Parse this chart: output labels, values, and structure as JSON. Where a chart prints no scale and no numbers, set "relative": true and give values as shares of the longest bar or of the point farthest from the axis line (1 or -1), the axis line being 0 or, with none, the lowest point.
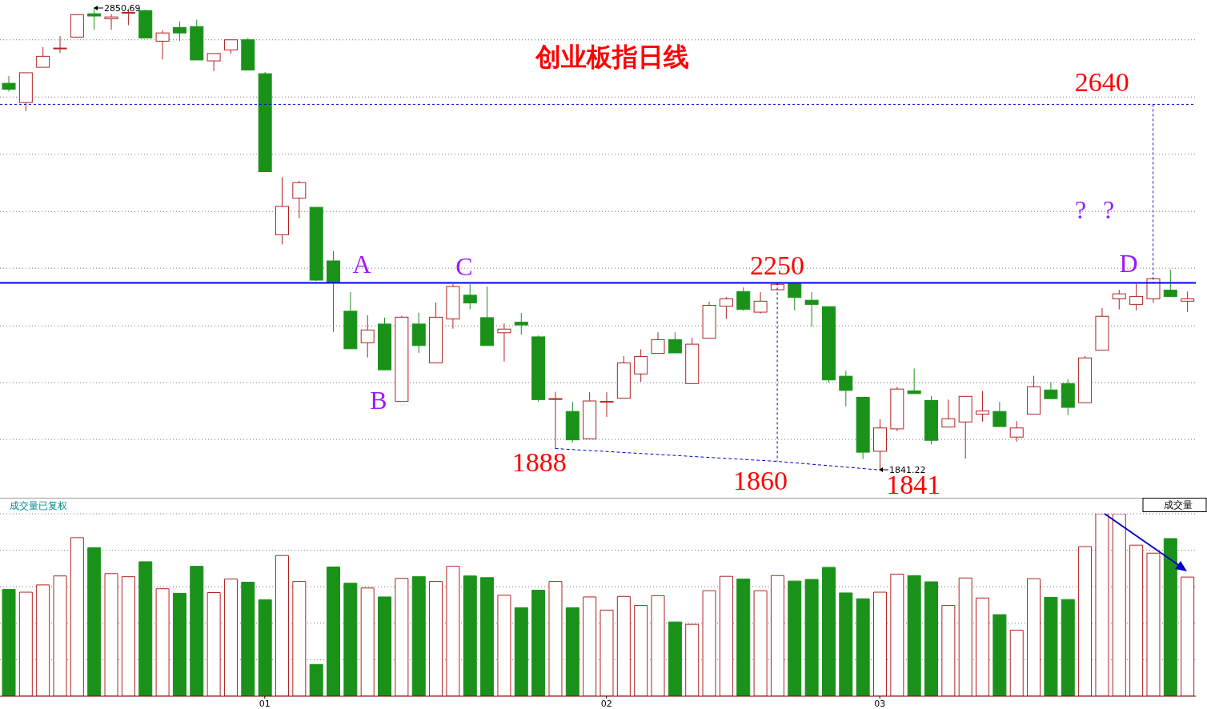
{
  "chart_data": [
    {
      "type": "candlestick",
      "title": "创业板指日线",
      "categories": [
        null,
        null,
        null,
        null,
        null,
        null,
        null,
        null,
        null,
        null,
        null,
        null,
        null,
        null,
        null,
        "01",
        null,
        null,
        null,
        null,
        null,
        null,
        null,
        null,
        null,
        null,
        null,
        null,
        null,
        null,
        null,
        null,
        null,
        null,
        null,
        "02",
        null,
        null,
        null,
        null,
        null,
        null,
        null,
        null,
        null,
        null,
        null,
        null,
        null,
        null,
        null,
        "03",
        null,
        null,
        null,
        null,
        null,
        null,
        null,
        null,
        null,
        null,
        null,
        null,
        null,
        null,
        null,
        null,
        null,
        null
      ],
      "ohlc": [
        [
          2686,
          2702,
          2668,
          2673
        ],
        [
          2644,
          2709,
          2625,
          2709
        ],
        [
          2721,
          2765,
          2721,
          2745
        ],
        [
          2762,
          2789,
          2752,
          2763
        ],
        [
          2787,
          2836,
          2787,
          2836
        ],
        [
          2838,
          2850.69,
          2803,
          2833
        ],
        [
          2827,
          2837,
          2803,
          2831
        ],
        [
          2840,
          2849,
          2813,
          2841
        ],
        [
          2845,
          2847,
          2785,
          2785
        ],
        [
          2778,
          2802,
          2738,
          2796
        ],
        [
          2808,
          2821,
          2778,
          2796
        ],
        [
          2810,
          2825,
          2737,
          2737
        ],
        [
          2735,
          2751,
          2713,
          2751
        ],
        [
          2759,
          2782,
          2751,
          2781
        ],
        [
          2781,
          2785,
          2715,
          2715
        ],
        [
          2707,
          2711,
          2493,
          2493
        ],
        [
          2355,
          2481,
          2334,
          2417
        ],
        [
          2435,
          2473,
          2391,
          2469
        ],
        [
          2415,
          2415,
          2254,
          2256
        ],
        [
          2298,
          2319,
          2143,
          2250
        ],
        [
          2188,
          2230,
          2106,
          2106
        ],
        [
          2119,
          2179,
          2087,
          2147
        ],
        [
          2160,
          2174,
          2060,
          2060
        ],
        [
          1991,
          2178,
          1991,
          2175
        ],
        [
          2160,
          2185,
          2097,
          2113
        ],
        [
          2075,
          2207,
          2075,
          2175
        ],
        [
          2171,
          2247,
          2150,
          2242
        ],
        [
          2223,
          2247,
          2192,
          2206
        ],
        [
          2174,
          2242,
          2113,
          2113
        ],
        [
          2141,
          2161,
          2078,
          2149
        ],
        [
          2164,
          2184,
          2137,
          2158
        ],
        [
          2132,
          2135,
          1990,
          1995
        ],
        [
          1996,
          2012,
          1888,
          1997
        ],
        [
          1969,
          1990,
          1901,
          1907
        ],
        [
          1909,
          2011,
          1909,
          1992
        ],
        [
          1990,
          2011,
          1957,
          1991
        ],
        [
          1998,
          2090,
          1998,
          2075
        ],
        [
          2051,
          2105,
          2034,
          2089
        ],
        [
          2096,
          2142,
          2096,
          2126
        ],
        [
          2126,
          2142,
          2097,
          2097
        ],
        [
          2030,
          2130,
          2030,
          2116
        ],
        [
          2129,
          2209,
          2129,
          2201
        ],
        [
          2199,
          2219,
          2171,
          2215
        ],
        [
          2231,
          2240,
          2189,
          2192
        ],
        [
          2186,
          2230,
          2183,
          2210
        ],
        [
          2235,
          2251,
          2235,
          2247
        ],
        [
          2248,
          2248,
          2190,
          2218
        ],
        [
          2212,
          2230,
          2155,
          2203
        ],
        [
          2198,
          2198,
          2032,
          2038
        ],
        [
          2046,
          2058,
          1980,
          2015
        ],
        [
          2000,
          2000,
          1865,
          1880
        ],
        [
          1882,
          1952,
          1841.22,
          1933
        ],
        [
          1931,
          2023,
          1926,
          2018
        ],
        [
          2014,
          2063,
          2008,
          2008
        ],
        [
          1993,
          2003,
          1897,
          1906
        ],
        [
          1935,
          1995,
          1935,
          1953
        ],
        [
          1946,
          2002,
          1866,
          2002
        ],
        [
          1963,
          2014,
          1947,
          1970
        ],
        [
          1969,
          1990,
          1936,
          1936
        ],
        [
          1913,
          1948,
          1903,
          1933
        ],
        [
          1963,
          2047,
          1963,
          2023
        ],
        [
          2016,
          2033,
          1997,
          1997
        ],
        [
          2030,
          2040,
          1961,
          1978
        ],
        [
          1988,
          2090,
          1988,
          2086
        ],
        [
          2103,
          2195,
          2103,
          2177
        ],
        [
          2215,
          2235,
          2192,
          2226
        ],
        [
          2203,
          2248,
          2190,
          2220
        ],
        [
          2215,
          2259,
          2206,
          2259
        ],
        [
          2234,
          2279,
          2219,
          2220
        ],
        [
          2210,
          2231,
          2186,
          2215
        ]
      ],
      "colors": [
        "#1a921a",
        "#b22222",
        "#b22222",
        "#b22222",
        "#b22222",
        "#1a921a",
        "#b22222",
        "#b22222",
        "#1a921a",
        "#b22222",
        "#1a921a",
        "#1a921a",
        "#b22222",
        "#b22222",
        "#1a921a",
        "#1a921a",
        "#b22222",
        "#b22222",
        "#1a921a",
        "#1a921a",
        "#1a921a",
        "#b22222",
        "#1a921a",
        "#b22222",
        "#1a921a",
        "#b22222",
        "#b22222",
        "#1a921a",
        "#1a921a",
        "#b22222",
        "#1a921a",
        "#1a921a",
        "#b22222",
        "#1a921a",
        "#b22222",
        "#b22222",
        "#b22222",
        "#b22222",
        "#b22222",
        "#1a921a",
        "#b22222",
        "#b22222",
        "#b22222",
        "#1a921a",
        "#b22222",
        "#b22222",
        "#1a921a",
        "#1a921a",
        "#1a921a",
        "#1a921a",
        "#1a921a",
        "#b22222",
        "#b22222",
        "#1a921a",
        "#1a921a",
        "#b22222",
        "#b22222",
        "#b22222",
        "#1a921a",
        "#b22222",
        "#b22222",
        "#1a921a",
        "#1a921a",
        "#b22222",
        "#b22222",
        "#b22222",
        "#b22222",
        "#b22222",
        "#1a921a",
        "#b22222"
      ],
      "series": [
        {
          "type": "line",
          "color": "#0000cc",
          "line_style": "dashed",
          "values": [
            null,
            null,
            null,
            null,
            null,
            null,
            null,
            null,
            null,
            null,
            null,
            null,
            null,
            null,
            null,
            null,
            null,
            null,
            null,
            null,
            null,
            null,
            null,
            null,
            null,
            null,
            null,
            null,
            null,
            null,
            null,
            null,
            1888,
            null,
            null,
            null,
            null,
            null,
            null,
            null,
            null,
            null,
            null,
            null,
            null,
            1860,
            null,
            null,
            null,
            null,
            null,
            1841.22,
            null,
            null,
            null,
            null,
            null,
            null,
            null,
            null,
            null,
            null,
            null,
            null,
            null,
            null,
            null,
            null,
            null,
            null
          ],
          "value_labels": [
            null,
            null,
            null,
            null,
            null,
            null,
            null,
            null,
            null,
            null,
            null,
            null,
            null,
            null,
            null,
            null,
            null,
            null,
            null,
            null,
            null,
            null,
            null,
            null,
            null,
            null,
            null,
            null,
            null,
            null,
            null,
            null,
            "1888",
            null,
            null,
            null,
            null,
            null,
            null,
            null,
            null,
            null,
            null,
            null,
            null,
            "1860",
            null,
            null,
            null,
            null,
            null,
            "1841",
            null,
            null,
            null,
            null,
            null,
            null,
            null,
            null,
            null,
            null,
            null,
            null,
            null,
            null,
            null,
            null,
            null,
            null
          ]
        }
      ],
      "ylim": [
        1784,
        2868
      ],
      "yticks": [
        {
          "value": 2781,
          "label": null
        },
        {
          "value": 2656,
          "label": null
        },
        {
          "value": 2531,
          "label": null
        },
        {
          "value": 2406,
          "label": null
        },
        {
          "value": 2282,
          "label": null
        },
        {
          "value": 2156,
          "label": null
        },
        {
          "value": 2032,
          "label": null
        },
        {
          "value": 1908,
          "label": null
        }
      ],
      "grid": "y",
      "tick_labels": false,
      "ref_lines": [
        {
          "axis": "y",
          "value": 2250,
          "label": "2250",
          "color": "#0000ff",
          "line_style": "solid"
        },
        {
          "axis": "y",
          "value": 2640,
          "label": "2640",
          "color": "#0000cc",
          "line_style": "dashed"
        }
      ],
      "annotations": [
        "A",
        "B",
        "C",
        {
          "text": "D",
          "y": 2250
        },
        "?",
        "?",
        "2850.69",
        "1841.22"
      ]
    },
    {
      "type": "bar",
      "title": "成交量已复权",
      "relative": true,
      "categories": [
        null,
        null,
        null,
        null,
        null,
        null,
        null,
        null,
        null,
        null,
        null,
        null,
        null,
        null,
        null,
        "01",
        null,
        null,
        null,
        null,
        null,
        null,
        null,
        null,
        null,
        null,
        null,
        null,
        null,
        null,
        null,
        null,
        null,
        null,
        null,
        "02",
        null,
        null,
        null,
        null,
        null,
        null,
        null,
        null,
        null,
        null,
        null,
        null,
        null,
        null,
        null,
        "03",
        null,
        null,
        null,
        null,
        null,
        null,
        null,
        null,
        null,
        null,
        null,
        null,
        null,
        null,
        null,
        null,
        null,
        null
      ],
      "values": [
        0.585,
        0.57,
        0.61,
        0.659,
        0.869,
        0.814,
        0.672,
        0.655,
        0.737,
        0.589,
        0.564,
        0.712,
        0.568,
        0.642,
        0.625,
        0.528,
        0.771,
        0.629,
        0.174,
        0.708,
        0.619,
        0.593,
        0.544,
        0.646,
        0.655,
        0.629,
        0.712,
        0.659,
        0.65,
        0.553,
        0.485,
        0.581,
        0.629,
        0.485,
        0.544,
        0.472,
        0.547,
        0.498,
        0.551,
        0.407,
        0.394,
        0.578,
        0.657,
        0.642,
        0.578,
        0.661,
        0.631,
        0.64,
        0.706,
        0.566,
        0.534,
        0.57,
        0.669,
        0.661,
        0.627,
        0.498,
        0.648,
        0.538,
        0.447,
        0.362,
        0.644,
        0.542,
        0.53,
        0.82,
        1,
        1,
        0.828,
        0.784,
        0.864,
        0.653
      ],
      "colors": [
        "#1a921a",
        "#b22222",
        "#b22222",
        "#b22222",
        "#b22222",
        "#1a921a",
        "#b22222",
        "#b22222",
        "#1a921a",
        "#b22222",
        "#1a921a",
        "#1a921a",
        "#b22222",
        "#b22222",
        "#1a921a",
        "#1a921a",
        "#b22222",
        "#b22222",
        "#1a921a",
        "#1a921a",
        "#1a921a",
        "#b22222",
        "#1a921a",
        "#b22222",
        "#1a921a",
        "#b22222",
        "#b22222",
        "#1a921a",
        "#1a921a",
        "#b22222",
        "#1a921a",
        "#1a921a",
        "#b22222",
        "#1a921a",
        "#b22222",
        "#b22222",
        "#b22222",
        "#b22222",
        "#b22222",
        "#1a921a",
        "#b22222",
        "#b22222",
        "#b22222",
        "#1a921a",
        "#b22222",
        "#b22222",
        "#1a921a",
        "#1a921a",
        "#1a921a",
        "#1a921a",
        "#1a921a",
        "#b22222",
        "#b22222",
        "#1a921a",
        "#1a921a",
        "#b22222",
        "#b22222",
        "#b22222",
        "#1a921a",
        "#b22222",
        "#b22222",
        "#1a921a",
        "#1a921a",
        "#b22222",
        "#b22222",
        "#b22222",
        "#b22222",
        "#b22222",
        "#1a921a",
        "#b22222"
      ],
      "grid": "y",
      "tick_labels": "x",
      "annotations": [
        "成交量"
      ]
    }
  ]
}
